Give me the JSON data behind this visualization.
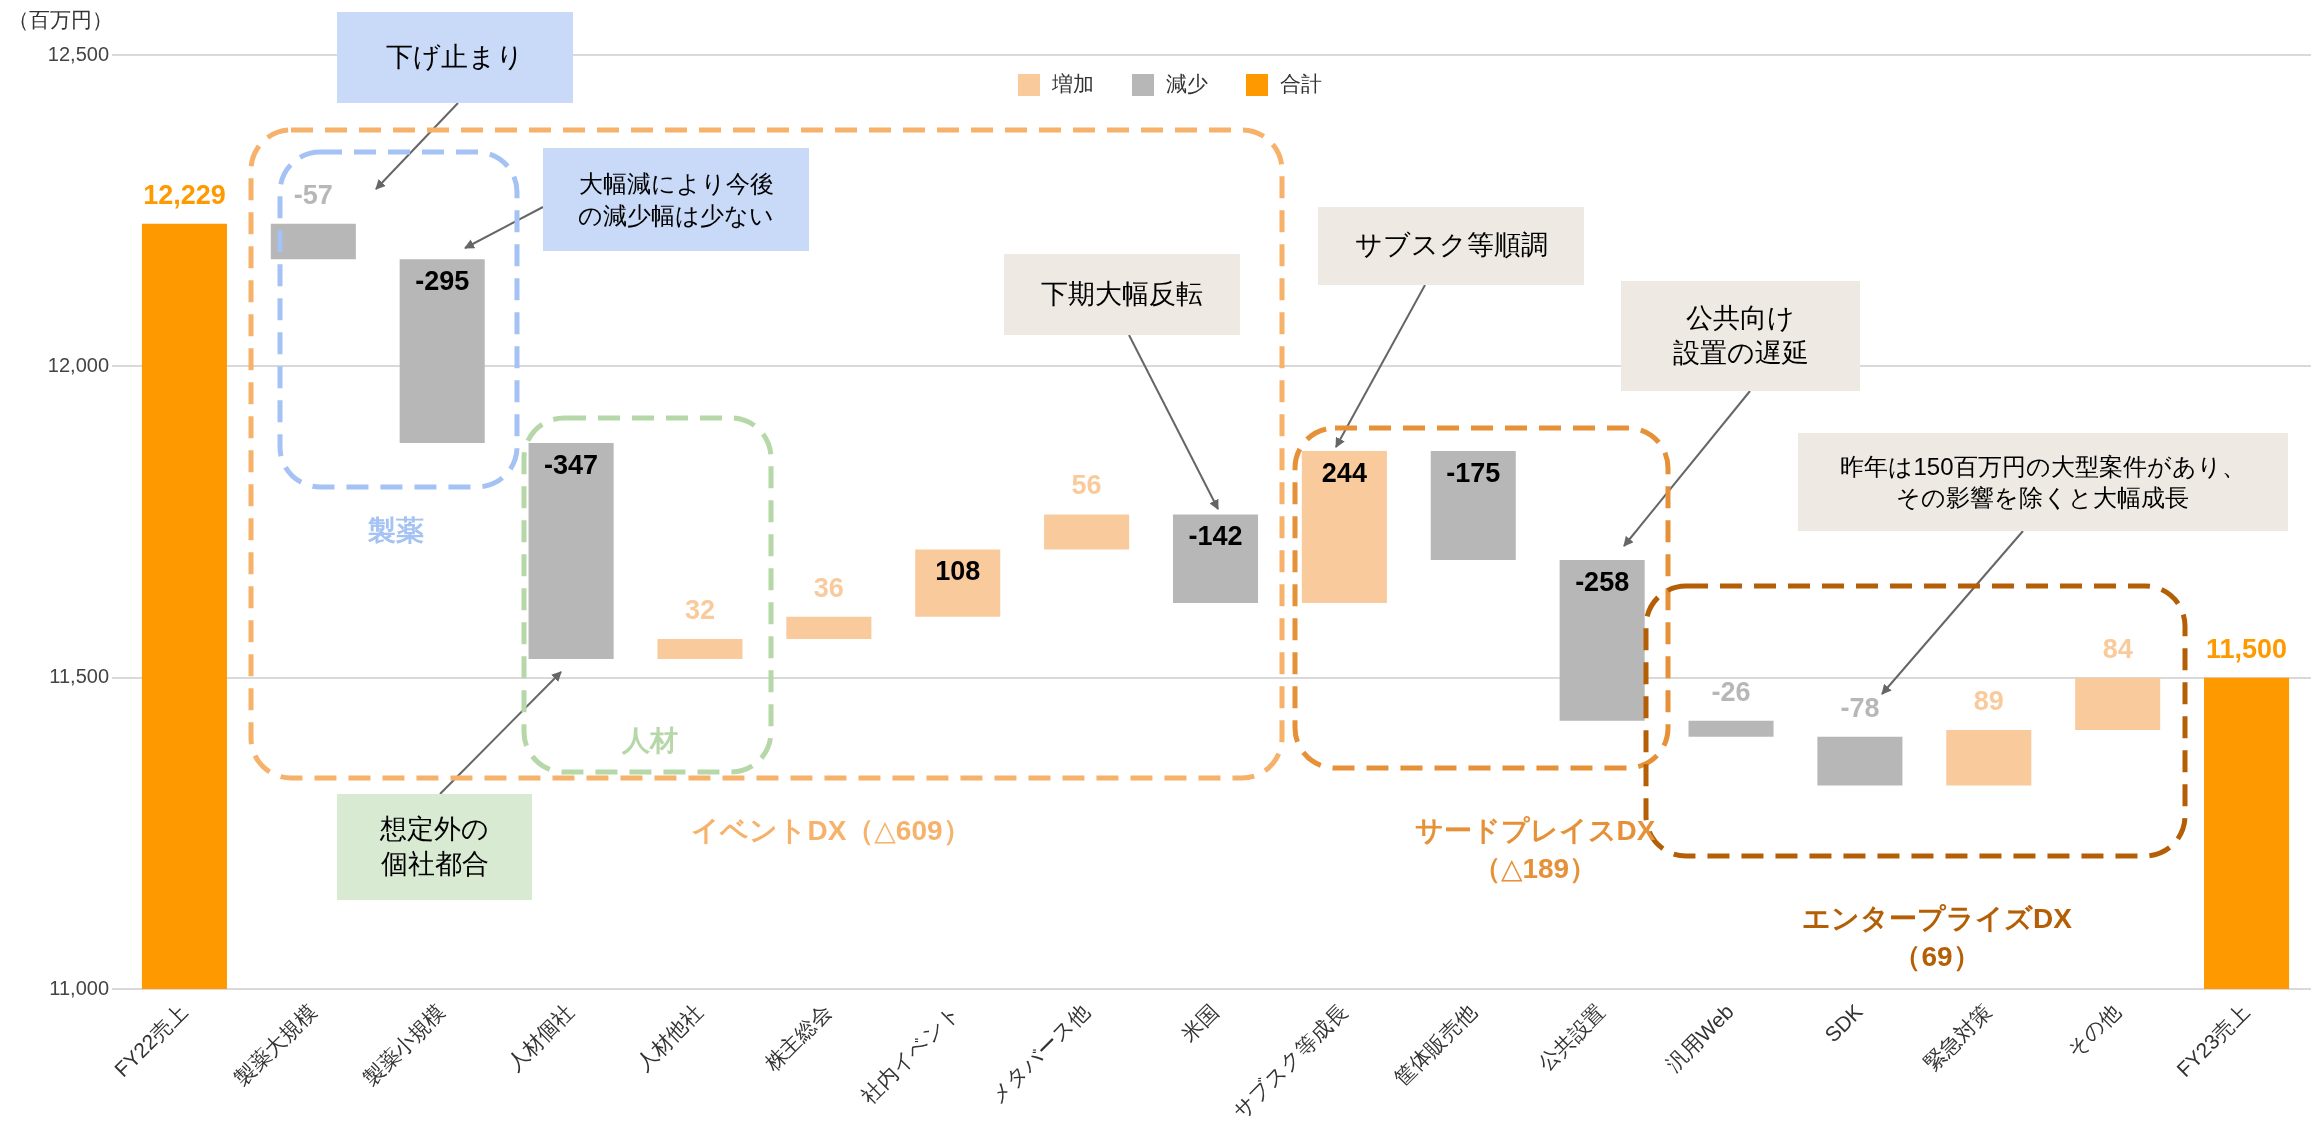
{
  "chart_data": {
    "type": "bar",
    "ylabel": "（百万円）",
    "categories": [
      "FY22売上",
      "製薬大規模",
      "製薬小規模",
      "人材個社",
      "人材他社",
      "株主総会",
      "社内イベント",
      "メタバース他",
      "米国",
      "サブスク等成長",
      "筐体販売他",
      "公共設置",
      "汎用Web",
      "SDK",
      "緊急対策",
      "その他",
      "FY23売上"
    ],
    "series": [
      {
        "name": "増加",
        "color": "#f9cb9c",
        "values": [
          null,
          null,
          null,
          null,
          32,
          36,
          108,
          56,
          null,
          244,
          null,
          null,
          null,
          null,
          89,
          84,
          null
        ],
        "base": [
          null,
          null,
          null,
          null,
          11530,
          11562,
          11598,
          11706,
          null,
          11620,
          null,
          null,
          null,
          null,
          11327,
          11416,
          null
        ]
      },
      {
        "name": "減少",
        "color": "#b7b7b7",
        "values": [
          null,
          -57,
          -295,
          -347,
          null,
          null,
          null,
          null,
          -142,
          null,
          -175,
          -258,
          -26,
          -78,
          null,
          null,
          null
        ],
        "base": [
          null,
          12229,
          12172,
          11877,
          null,
          null,
          null,
          null,
          11762,
          null,
          11864,
          11689,
          11431,
          11405,
          null,
          null,
          null
        ]
      },
      {
        "name": "合計",
        "color": "#ff9900",
        "values": [
          12229,
          null,
          null,
          null,
          null,
          null,
          null,
          null,
          null,
          null,
          null,
          null,
          null,
          null,
          null,
          null,
          11500
        ],
        "value_labels": [
          "12,229",
          null,
          null,
          null,
          null,
          null,
          null,
          null,
          null,
          null,
          null,
          null,
          null,
          null,
          null,
          null,
          "11,500"
        ]
      }
    ],
    "ylim": [
      11000,
      12500
    ],
    "yticks": [
      {
        "value": 11000,
        "label": "11,000"
      },
      {
        "value": 11500,
        "label": "11,500"
      },
      {
        "value": 12000,
        "label": "12,000"
      },
      {
        "value": 12500,
        "label": "12,500"
      }
    ],
    "grid": "y",
    "legend": "top",
    "data_labels": true,
    "annotations": [
      "下げ止まり",
      "大幅減により今後の減少幅は少ない",
      "想定外の個社都合",
      "下期大幅反転",
      "サブスク等順調",
      "公共向け設置の遅延",
      "昨年は150百万円の大型案件があり、その影響を除くと大幅成長",
      "製薬",
      "人材",
      "イベントDX（△609）",
      "サードプレイスDX（△189）",
      "エンタープライズDX（69）"
    ]
  }
}
